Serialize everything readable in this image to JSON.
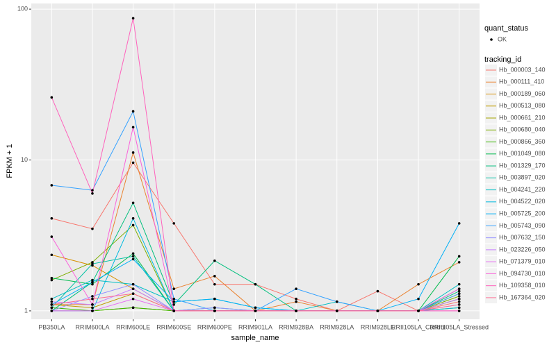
{
  "chart_data": {
    "type": "line",
    "x_label": "sample_name",
    "y_label": "FPKM + 1",
    "categories": [
      "PB350LA",
      "RRIM600LA",
      "RRIM600LE",
      "RRIM600SE",
      "RRIM600PE",
      "RRIM901LA",
      "RRIM928BA",
      "RRIM928LA",
      "RRIM928LE",
      "RRII105LA_Control",
      "RRII105LA_Stressed"
    ],
    "ylim": [
      0.88,
      109
    ],
    "yticks": [
      1,
      10,
      100
    ],
    "log_y": true,
    "grid": true,
    "point_legend_title": "quant_status",
    "point_legend": [
      "OK"
    ],
    "point_color": "#000000",
    "legend_title": "tracking_id",
    "series": [
      {
        "name": "Hb_000003_140",
        "color": "#F8766D",
        "values": [
          4.1,
          3.5,
          9.6,
          3.8,
          1.5,
          1.5,
          1.2,
          1.0,
          1.35,
          1.0,
          1.15
        ]
      },
      {
        "name": "Hb_000111_410",
        "color": "#EA8331",
        "values": [
          1.1,
          1.1,
          11.2,
          1.4,
          1.7,
          1.0,
          1.15,
          1.0,
          1.0,
          1.5,
          2.1
        ]
      },
      {
        "name": "Hb_000189_060",
        "color": "#D89000",
        "values": [
          2.35,
          2.0,
          1.4,
          1.0,
          1.0,
          1.0,
          1.0,
          1.0,
          1.0,
          1.0,
          1.2
        ]
      },
      {
        "name": "Hb_000513_080",
        "color": "#C09B00",
        "values": [
          1.1,
          1.05,
          1.3,
          1.0,
          1.0,
          1.0,
          1.0,
          1.0,
          1.0,
          1.0,
          1.3
        ]
      },
      {
        "name": "Hb_000661_210",
        "color": "#A3A500",
        "values": [
          1.0,
          1.0,
          1.05,
          1.0,
          1.0,
          1.0,
          1.0,
          1.0,
          1.0,
          1.0,
          1.05
        ]
      },
      {
        "name": "Hb_000680_040",
        "color": "#7CAE00",
        "values": [
          1.6,
          2.1,
          3.7,
          1.0,
          1.0,
          1.0,
          1.0,
          1.0,
          1.0,
          1.0,
          1.25
        ]
      },
      {
        "name": "Hb_000866_360",
        "color": "#39B600",
        "values": [
          1.05,
          1.0,
          1.05,
          1.0,
          1.0,
          1.0,
          1.0,
          1.0,
          1.0,
          1.0,
          1.2
        ]
      },
      {
        "name": "Hb_001049_080",
        "color": "#00BB4E",
        "values": [
          1.65,
          1.5,
          2.4,
          1.0,
          1.0,
          1.0,
          1.0,
          1.0,
          1.0,
          1.0,
          2.3
        ]
      },
      {
        "name": "Hb_001329_170",
        "color": "#00BF7D",
        "values": [
          1.0,
          1.55,
          5.2,
          1.1,
          2.15,
          1.5,
          1.0,
          1.0,
          1.0,
          1.0,
          1.35
        ]
      },
      {
        "name": "Hb_003897_020",
        "color": "#00C1A3",
        "values": [
          1.05,
          2.05,
          2.3,
          1.0,
          1.05,
          1.0,
          1.0,
          1.0,
          1.0,
          1.0,
          1.4
        ]
      },
      {
        "name": "Hb_004241_220",
        "color": "#00BFC4",
        "values": [
          1.2,
          1.6,
          1.5,
          1.15,
          1.2,
          1.05,
          1.0,
          1.15,
          1.0,
          1.0,
          1.5
        ]
      },
      {
        "name": "Hb_004522_020",
        "color": "#00BAE0",
        "values": [
          1.0,
          1.0,
          4.1,
          1.0,
          1.0,
          1.0,
          1.0,
          1.0,
          1.0,
          1.0,
          1.05
        ]
      },
      {
        "name": "Hb_005725_200",
        "color": "#00B0F6",
        "values": [
          1.1,
          1.55,
          2.2,
          1.15,
          1.2,
          1.05,
          1.0,
          1.0,
          1.0,
          1.2,
          3.8
        ]
      },
      {
        "name": "Hb_005743_090",
        "color": "#35A2FF",
        "values": [
          6.8,
          6.3,
          21,
          1.2,
          1.0,
          1.0,
          1.4,
          1.15,
          1.0,
          1.0,
          1.3
        ]
      },
      {
        "name": "Hb_007632_150",
        "color": "#9590FF",
        "values": [
          1.0,
          1.25,
          1.5,
          1.0,
          1.05,
          1.0,
          1.0,
          1.0,
          1.0,
          1.0,
          1.1
        ]
      },
      {
        "name": "Hb_023226_050",
        "color": "#C77CFF",
        "values": [
          1.15,
          1.1,
          1.4,
          1.0,
          1.0,
          1.0,
          1.0,
          1.0,
          1.0,
          1.0,
          1.2
        ]
      },
      {
        "name": "Hb_071379_010",
        "color": "#E76BF3",
        "values": [
          1.0,
          1.0,
          1.2,
          1.0,
          1.0,
          1.0,
          1.0,
          1.0,
          1.0,
          1.0,
          1.0
        ]
      },
      {
        "name": "Hb_094730_010",
        "color": "#FA62DB",
        "values": [
          3.1,
          1.1,
          16.5,
          1.0,
          1.0,
          1.0,
          1.0,
          1.0,
          1.0,
          1.0,
          1.4
        ]
      },
      {
        "name": "Hb_109358_010",
        "color": "#FF62BC",
        "values": [
          26,
          6.0,
          87,
          1.0,
          1.0,
          1.0,
          1.0,
          1.0,
          1.0,
          1.0,
          1.0
        ]
      },
      {
        "name": "Hb_167364_020",
        "color": "#FF6C91",
        "values": [
          1.1,
          1.2,
          1.3,
          1.0,
          1.0,
          1.0,
          1.0,
          1.0,
          1.0,
          1.0,
          1.1
        ]
      }
    ]
  }
}
